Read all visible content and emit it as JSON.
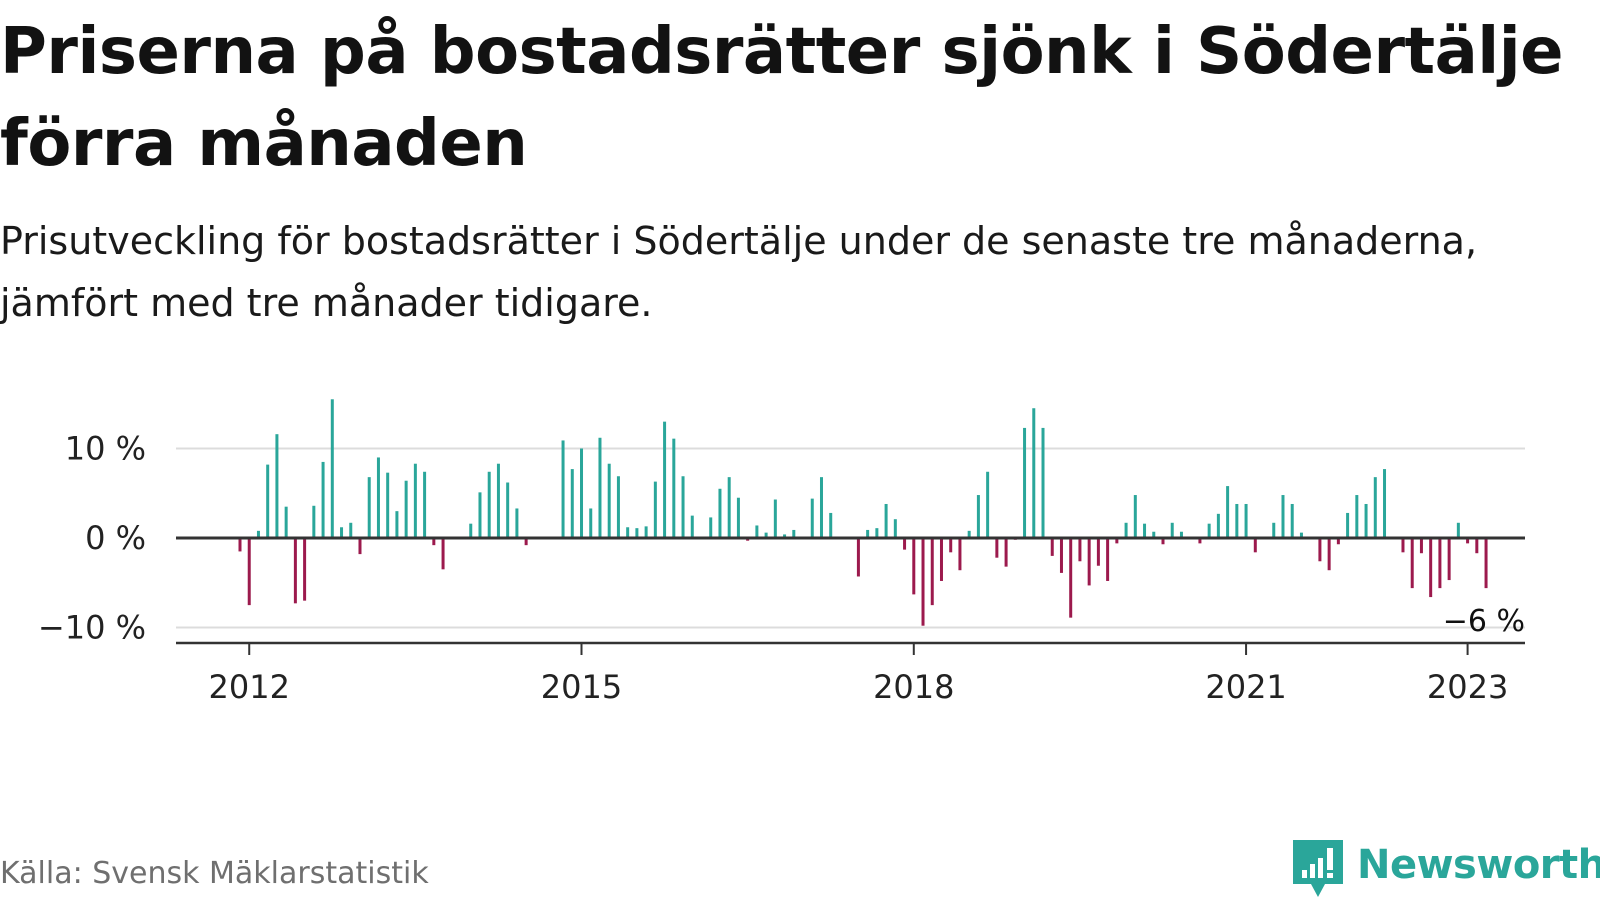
{
  "title": "Priserna på bostadsrätter sjönk i Södertälje förra månaden",
  "subtitle": "Prisutveckling för bostadsrätter i Södertälje under de senaste tre månaderna, jämfört med tre månader tidigare.",
  "source": "Källa: Svensk Mäklarstatistik",
  "brand": {
    "name": "Newsworthy",
    "logo_icon": "bar-chart-logo-icon"
  },
  "colors": {
    "positive": "#2aa69a",
    "negative": "#9c1a4d",
    "grid": "#dcdcdc",
    "axis": "#333333",
    "brand": "#2aa69a"
  },
  "chart_data": {
    "type": "bar",
    "x_start": "2011-12",
    "x_interval": "month",
    "y_unit": "%",
    "ylim": [
      -11.5,
      16
    ],
    "y_ticks": [
      10,
      0,
      -10
    ],
    "y_tick_labels": [
      "10 %",
      "0 %",
      "−10 %"
    ],
    "x_ticks": [
      "2012",
      "2015",
      "2018",
      "2021",
      "2023"
    ],
    "grid": true,
    "end_label": "−6 %",
    "values": [
      -1.5,
      -7.5,
      0.8,
      8.2,
      11.6,
      3.5,
      -7.3,
      -7.0,
      3.6,
      8.5,
      15.5,
      1.2,
      1.7,
      -1.8,
      6.8,
      9.0,
      7.3,
      3.0,
      6.4,
      8.3,
      7.4,
      -0.8,
      -3.5,
      0.0,
      0.0,
      1.6,
      5.1,
      7.4,
      8.3,
      6.2,
      3.3,
      -0.8,
      0.0,
      0.0,
      0.0,
      10.9,
      7.7,
      10.0,
      3.3,
      11.2,
      8.3,
      6.9,
      1.2,
      1.1,
      1.3,
      6.3,
      13.0,
      11.1,
      6.9,
      2.5,
      0.0,
      2.3,
      5.5,
      6.8,
      4.5,
      -0.3,
      1.4,
      0.6,
      4.3,
      0.4,
      0.9,
      0.0,
      4.4,
      6.8,
      2.8,
      0.0,
      0.0,
      -4.3,
      0.9,
      1.1,
      3.8,
      2.1,
      -1.3,
      -6.3,
      -9.8,
      -7.5,
      -4.8,
      -1.6,
      -3.6,
      0.8,
      4.8,
      7.4,
      -2.2,
      -3.2,
      -0.2,
      12.3,
      14.5,
      12.3,
      -2.0,
      -3.9,
      -8.9,
      -2.6,
      -5.3,
      -3.1,
      -4.8,
      -0.6,
      1.7,
      4.8,
      1.6,
      0.7,
      -0.7,
      1.7,
      0.7,
      0.0,
      -0.6,
      1.6,
      2.7,
      5.8,
      3.8,
      3.8,
      -1.6,
      0.0,
      1.7,
      4.8,
      3.8,
      0.6,
      0.0,
      -2.6,
      -3.6,
      -0.7,
      2.8,
      4.8,
      3.8,
      6.8,
      7.7,
      0.0,
      -1.6,
      -5.6,
      -1.7,
      -6.6,
      -5.6,
      -4.7,
      1.7,
      -0.6,
      -1.7,
      -5.6
    ]
  }
}
